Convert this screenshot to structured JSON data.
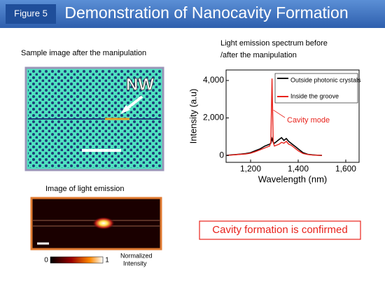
{
  "header": {
    "figure_label": "Figure 5",
    "title": "Demonstration of Nanocavity Formation"
  },
  "sample_caption": "Sample image after the manipulation",
  "sample_image_label": "NW",
  "emission_caption": "Image of light emission",
  "colorbar": {
    "min_label": "0",
    "max_label": "1",
    "title": [
      "Normalized",
      "Intensity"
    ]
  },
  "spectrum_caption": [
    "Light emission spectrum before",
    "/after the manipulation"
  ],
  "conclusion": "Cavity formation is confirmed",
  "chart_data": {
    "type": "line",
    "xlabel": "Wavelength (nm)",
    "ylabel": "Intensity (a.u)",
    "annotation": "Cavity mode",
    "x": [
      1100,
      1120,
      1140,
      1160,
      1180,
      1200,
      1220,
      1240,
      1260,
      1270,
      1280,
      1285,
      1290,
      1295,
      1300,
      1310,
      1320,
      1330,
      1340,
      1350,
      1360,
      1370,
      1380,
      1390,
      1400,
      1420,
      1440,
      1460,
      1480,
      1500
    ],
    "series": [
      {
        "name": "Outside photonic crystals",
        "color": "#000000",
        "values": [
          0,
          30,
          50,
          70,
          100,
          150,
          250,
          350,
          500,
          550,
          600,
          650,
          900,
          700,
          650,
          750,
          850,
          950,
          800,
          900,
          750,
          650,
          550,
          450,
          350,
          150,
          60,
          30,
          10,
          0
        ]
      },
      {
        "name": "Inside the groove",
        "color": "#e8231c",
        "values": [
          0,
          20,
          40,
          60,
          80,
          120,
          200,
          300,
          400,
          450,
          500,
          700,
          4100,
          700,
          500,
          550,
          600,
          700,
          650,
          750,
          600,
          550,
          450,
          350,
          250,
          100,
          50,
          20,
          10,
          0
        ]
      }
    ],
    "xlim": [
      1097,
      1656
    ],
    "xticks": [
      {
        "value": 1200,
        "label": "1,200"
      },
      {
        "value": 1400,
        "label": "1,400"
      },
      {
        "value": 1600,
        "label": "1,600"
      }
    ],
    "ylim": [
      -370,
      4560
    ],
    "yticks": [
      0,
      {
        "value": 2000,
        "label": "2,000"
      },
      {
        "value": 4000,
        "label": "4,000"
      }
    ],
    "legend": "top-right"
  }
}
